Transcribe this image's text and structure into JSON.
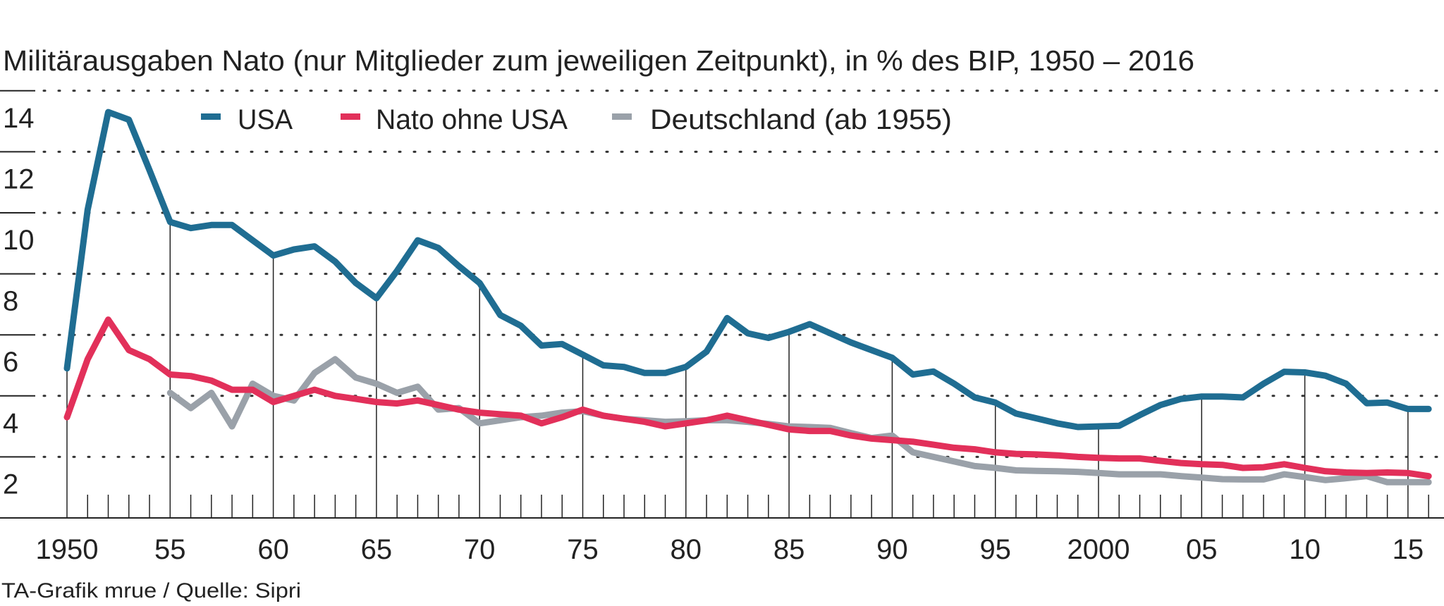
{
  "chart_data": {
    "type": "line",
    "title": "Militärausgaben Nato (nur Mitglieder zum jeweiligen Zeitpunkt), in % des BIP, 1950 – 2016",
    "xlabel": "",
    "ylabel": "% des BIP",
    "ylim": [
      0,
      14
    ],
    "xlim": [
      1950,
      2016
    ],
    "grid": "dotted-horizontal",
    "legend_placement": "top-left",
    "y_ticks": [
      2,
      4,
      6,
      8,
      10,
      12,
      14
    ],
    "y_tick_labels": [
      "2",
      "4",
      "6",
      "8",
      "10",
      "12",
      "14"
    ],
    "x_ticks": [
      1950,
      1955,
      1960,
      1965,
      1970,
      1975,
      1980,
      1985,
      1990,
      1995,
      2000,
      2005,
      2010,
      2015
    ],
    "x_tick_labels": [
      "1950",
      "55",
      "60",
      "65",
      "70",
      "75",
      "80",
      "85",
      "90",
      "95",
      "2000",
      "05",
      "10",
      "15"
    ],
    "series": [
      {
        "name": "USA",
        "color": "#1f6d92",
        "start": 1950,
        "values": [
          4.9,
          10.1,
          13.3,
          13.05,
          11.4,
          9.7,
          9.5,
          9.6,
          9.6,
          9.1,
          8.6,
          8.8,
          8.9,
          8.4,
          7.7,
          7.2,
          8.1,
          9.1,
          8.85,
          8.25,
          7.7,
          6.65,
          6.3,
          5.65,
          5.7,
          5.35,
          5.0,
          4.95,
          4.75,
          4.75,
          4.95,
          5.45,
          6.55,
          6.05,
          5.9,
          6.1,
          6.35,
          6.05,
          5.75,
          5.5,
          5.25,
          4.7,
          4.8,
          4.4,
          3.95,
          3.78,
          3.42,
          3.26,
          3.1,
          2.98,
          3.0,
          3.02,
          3.37,
          3.7,
          3.9,
          3.98,
          3.98,
          3.95,
          4.4,
          4.79,
          4.77,
          4.66,
          4.4,
          3.76,
          3.78,
          3.57,
          3.57
        ]
      },
      {
        "name": "Nato ohne USA",
        "color": "#e2305a",
        "start": 1950,
        "values": [
          3.3,
          5.2,
          6.5,
          5.5,
          5.2,
          4.7,
          4.65,
          4.5,
          4.2,
          4.2,
          3.8,
          4.0,
          4.2,
          4.0,
          3.9,
          3.8,
          3.75,
          3.85,
          3.7,
          3.55,
          3.45,
          3.4,
          3.35,
          3.1,
          3.3,
          3.55,
          3.35,
          3.25,
          3.15,
          3.0,
          3.1,
          3.2,
          3.35,
          3.2,
          3.05,
          2.9,
          2.85,
          2.85,
          2.7,
          2.6,
          2.55,
          2.5,
          2.4,
          2.3,
          2.25,
          2.15,
          2.1,
          2.08,
          2.05,
          2.0,
          1.97,
          1.95,
          1.95,
          1.87,
          1.8,
          1.76,
          1.74,
          1.64,
          1.66,
          1.76,
          1.64,
          1.53,
          1.49,
          1.47,
          1.49,
          1.47,
          1.37
        ]
      },
      {
        "name": "Deutschland (ab 1955)",
        "color": "#9aa1a9",
        "start": 1955,
        "values": [
          4.1,
          3.6,
          4.1,
          3.0,
          4.4,
          4.0,
          3.85,
          4.75,
          5.2,
          4.6,
          4.4,
          4.1,
          4.3,
          3.55,
          3.6,
          3.1,
          3.2,
          3.3,
          3.35,
          3.45,
          3.5,
          3.35,
          3.25,
          3.2,
          3.15,
          3.17,
          3.2,
          3.2,
          3.15,
          3.08,
          3.0,
          2.98,
          2.95,
          2.78,
          2.62,
          2.7,
          2.15,
          2.0,
          1.85,
          1.7,
          1.64,
          1.56,
          1.54,
          1.53,
          1.51,
          1.47,
          1.43,
          1.43,
          1.43,
          1.37,
          1.32,
          1.27,
          1.26,
          1.26,
          1.43,
          1.34,
          1.24,
          1.3,
          1.37,
          1.17,
          1.17,
          1.17
        ]
      }
    ]
  },
  "footer": "TA-Grafik mrue / Quelle: Sipri"
}
